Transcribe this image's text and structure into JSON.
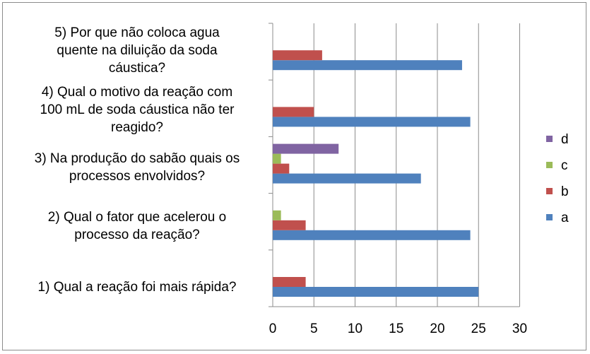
{
  "chart_data": {
    "type": "bar",
    "orientation": "horizontal",
    "categories": [
      "1)      Qual a reação foi mais rápida?",
      "2)      Qual o fator que acelerou o processo da reação?",
      "3)      Na produção do sabão quais os processos envolvidos?",
      "4)      Qual o motivo da reação com 100 mL de soda cáustica não ter reagido?",
      "5)      Por que não coloca agua quente na diluição da soda cáustica?"
    ],
    "category_display": [
      "1)     Qual a reação foi mais rápida?",
      "2)     Qual o fator que acelerou o\nprocesso da reação?",
      "3)     Na produção do sabão quais os\nprocessos envolvidos?",
      "4)     Qual o motivo da reação com\n100 mL de soda cáustica não ter\nreagido?",
      "5)     Por que não coloca agua\nquente na diluição da soda\ncáustica?"
    ],
    "series": [
      {
        "name": "a",
        "color": "#4f81bd",
        "values": [
          25,
          24,
          18,
          24,
          23
        ]
      },
      {
        "name": "b",
        "color": "#c0504d",
        "values": [
          4,
          4,
          2,
          5,
          6
        ]
      },
      {
        "name": "c",
        "color": "#9bbb59",
        "values": [
          0,
          1,
          1,
          0,
          0
        ]
      },
      {
        "name": "d",
        "color": "#8064a2",
        "values": [
          0,
          0,
          8,
          0,
          0
        ]
      }
    ],
    "xlim": [
      0,
      30
    ],
    "xticks": [
      "0",
      "5",
      "10",
      "15",
      "20",
      "25",
      "30"
    ],
    "grid": "vertical",
    "legend_position": "right",
    "legend_order": [
      "d",
      "c",
      "b",
      "a"
    ]
  }
}
